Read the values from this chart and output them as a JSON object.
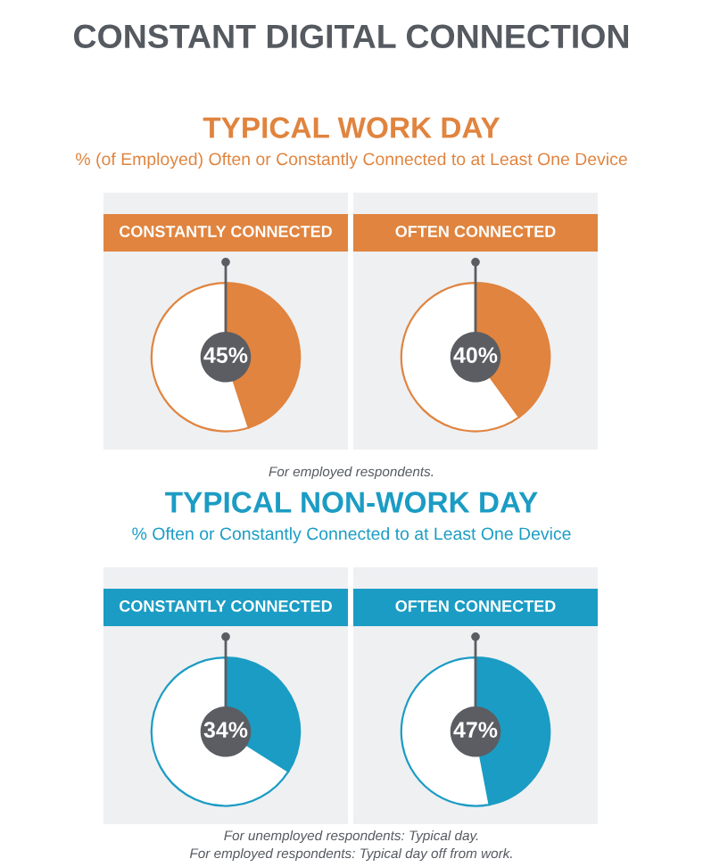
{
  "chart_data": [
    {
      "type": "donut",
      "title": "CONSTANTLY CONNECTED",
      "categories": [
        null,
        null
      ],
      "values": [
        45,
        55
      ],
      "colors": [
        "#e0843f",
        "#ffffff"
      ],
      "value_labels": [
        "45%",
        null
      ],
      "annotations": [
        "CONSTANT DIGITAL CONNECTION",
        "TYPICAL WORK DAY",
        "% (of Employed) Often or Constantly Connected to at Least One Device",
        "For employed respondents."
      ]
    },
    {
      "type": "donut",
      "title": "OFTEN CONNECTED",
      "categories": [
        null,
        null
      ],
      "values": [
        40,
        60
      ],
      "colors": [
        "#e0843f",
        "#ffffff"
      ],
      "value_labels": [
        "40%",
        null
      ]
    },
    {
      "type": "donut",
      "title": "CONSTANTLY CONNECTED",
      "categories": [
        null,
        null
      ],
      "values": [
        34,
        66
      ],
      "colors": [
        "#1b9cc4",
        "#ffffff"
      ],
      "value_labels": [
        "34%",
        null
      ],
      "annotations": [
        "TYPICAL NON-WORK DAY",
        "% Often or Constantly Connected to at Least One Device",
        "For unemployed respondents: Typical day.",
        "For employed respondents: Typical day off from work."
      ]
    },
    {
      "type": "donut",
      "title": "OFTEN CONNECTED",
      "categories": [
        null,
        null
      ],
      "values": [
        47,
        53
      ],
      "colors": [
        "#1b9cc4",
        "#ffffff"
      ],
      "value_labels": [
        "47%",
        null
      ]
    }
  ]
}
